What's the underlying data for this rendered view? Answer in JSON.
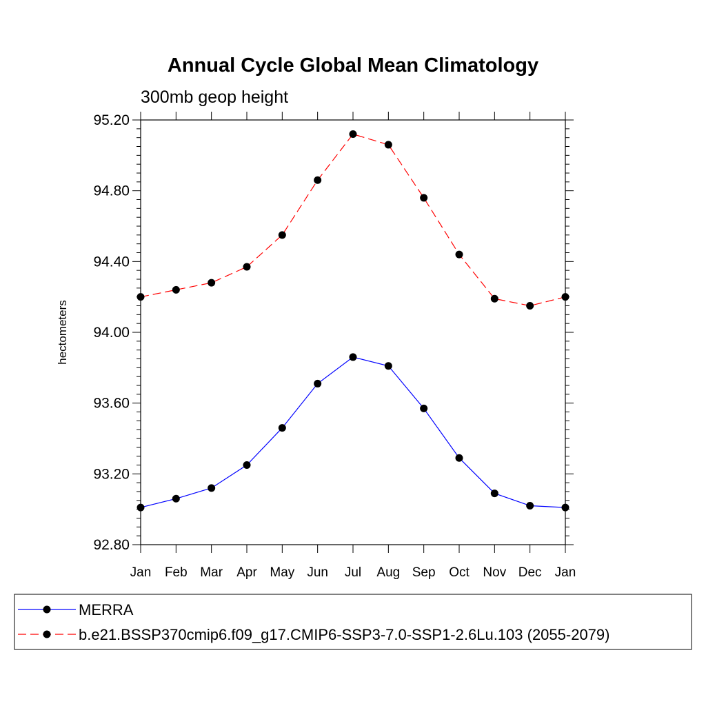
{
  "chart_data": {
    "type": "line",
    "title": "Annual Cycle Global Mean Climatology",
    "subtitle": "300mb geop height",
    "ylabel": "hectometers",
    "xlabel": "",
    "categories": [
      "Jan",
      "Feb",
      "Mar",
      "Apr",
      "May",
      "Jun",
      "Jul",
      "Aug",
      "Sep",
      "Oct",
      "Nov",
      "Dec",
      "Jan"
    ],
    "ylim": [
      92.8,
      95.2
    ],
    "yticks": [
      "92.80",
      "93.20",
      "93.60",
      "94.00",
      "94.40",
      "94.80",
      "95.20"
    ],
    "series": [
      {
        "name": "MERRA",
        "color": "#0000ff",
        "line_style": "solid",
        "marker": "filled-circle",
        "values": [
          93.01,
          93.06,
          93.12,
          93.25,
          93.46,
          93.71,
          93.86,
          93.81,
          93.57,
          93.29,
          93.09,
          93.02,
          93.01
        ]
      },
      {
        "name": "b.e21.BSSP370cmip6.f09_g17.CMIP6-SSP3-7.0-SSP1-2.6Lu.103 (2055-2079)",
        "color": "#ff0000",
        "line_style": "dashed",
        "marker": "filled-circle",
        "values": [
          94.2,
          94.24,
          94.28,
          94.37,
          94.55,
          94.86,
          95.12,
          95.06,
          94.76,
          94.44,
          94.19,
          94.15,
          94.2
        ]
      }
    ],
    "legend_position": "bottom",
    "grid": false
  }
}
